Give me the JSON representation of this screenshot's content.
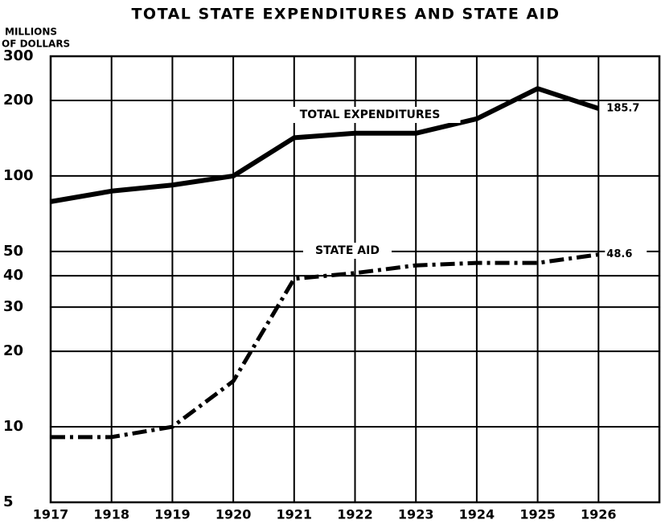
{
  "chart_data": {
    "type": "line",
    "title": "TOTAL STATE EXPENDITURES AND STATE AID",
    "ylabel": [
      "MILLIONS",
      "OF DOLLARS"
    ],
    "x": [
      1917,
      1918,
      1919,
      1920,
      1921,
      1922,
      1923,
      1924,
      1925,
      1926
    ],
    "xlim": [
      1917,
      1927
    ],
    "xticks": [
      1917,
      1918,
      1919,
      1920,
      1921,
      1922,
      1923,
      1924,
      1925,
      1926
    ],
    "ylim": [
      5,
      300
    ],
    "yticks": [
      5,
      10,
      20,
      30,
      40,
      50,
      100,
      200,
      300
    ],
    "log_y": true,
    "grid": true,
    "series": [
      {
        "name": "TOTAL EXPENDITURES",
        "color": "#000000",
        "style": "solid",
        "values": [
          79,
          87,
          92,
          100,
          142,
          148,
          148,
          169,
          223,
          185.7
        ]
      },
      {
        "name": "STATE AID",
        "color": "#000000",
        "style": "dashdot",
        "values": [
          9.1,
          9.1,
          10,
          15.2,
          38.9,
          41,
          44,
          45,
          45,
          48.6
        ]
      }
    ]
  }
}
